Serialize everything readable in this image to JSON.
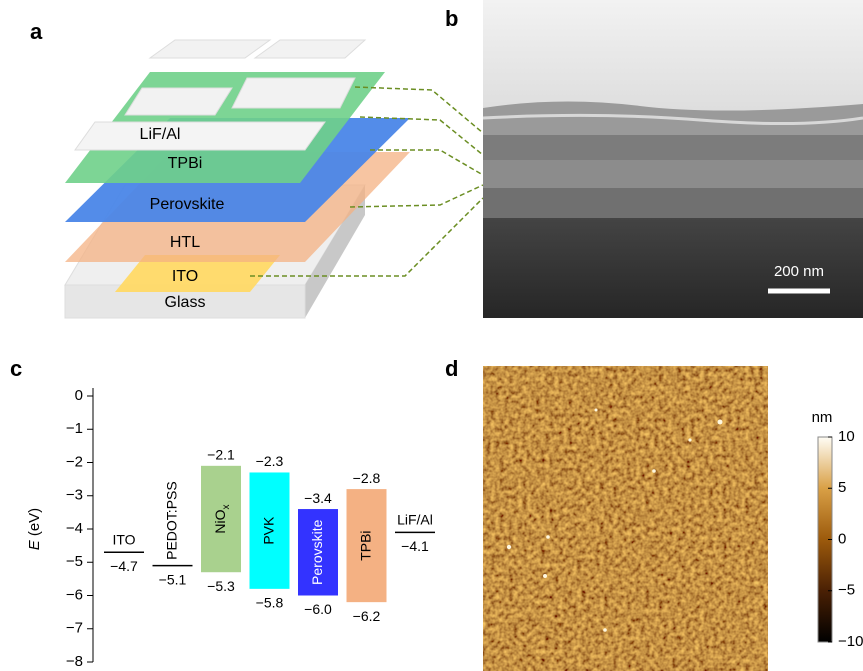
{
  "panels": {
    "a": "a",
    "b": "b",
    "c": "c",
    "d": "d"
  },
  "device_layers": [
    "LiF/Al",
    "TPBi",
    "Perovskite",
    "HTL",
    "ITO",
    "Glass"
  ],
  "sem": {
    "scale_bar": "200 nm"
  },
  "chart_data": {
    "type": "energy_levels",
    "ylabel_var": "E",
    "ylabel_unit": "(eV)",
    "ylim": [
      -8,
      0
    ],
    "yticks": [
      0,
      {
        "value": -1,
        "label": "−1"
      },
      {
        "value": -2,
        "label": "−2"
      },
      {
        "value": -3,
        "label": "−3"
      },
      {
        "value": -4,
        "label": "−4"
      },
      {
        "value": -5,
        "label": "−5"
      },
      {
        "value": -6,
        "label": "−6"
      },
      {
        "value": -7,
        "label": "−7"
      },
      {
        "value": -8,
        "label": "−8"
      }
    ],
    "levels": [
      {
        "label": "ITO",
        "values": [
          -4.7
        ],
        "value_labels": [
          "−4.7"
        ]
      },
      {
        "label": "PEDOT:PSS",
        "values": [
          -5.1
        ],
        "value_labels": [
          "−5.1"
        ],
        "rotated_label": true
      },
      {
        "label": "NiO",
        "label_sub": "x",
        "values": [
          -2.1,
          -5.3
        ],
        "value_labels": [
          "−2.1",
          "−5.3"
        ],
        "color": "#a9d18e"
      },
      {
        "label": "PVK",
        "values": [
          -2.3,
          -5.8
        ],
        "value_labels": [
          "−2.3",
          "−5.8"
        ],
        "color": "#00ffff"
      },
      {
        "label": "Perovskite",
        "values": [
          -3.4,
          -6.0
        ],
        "value_labels": [
          "−3.4",
          "−6.0"
        ],
        "color": "#3333ff",
        "label_color": "#ffffff"
      },
      {
        "label": "TPBi",
        "values": [
          -2.8,
          -6.2
        ],
        "value_labels": [
          "−2.8",
          "−6.2"
        ],
        "color": "#f4b183"
      },
      {
        "label": "LiF/Al",
        "values": [
          -4.1
        ],
        "value_labels": [
          "−4.1"
        ]
      }
    ]
  },
  "afm": {
    "colorbar": {
      "label": "nm",
      "lim": [
        -10,
        10
      ],
      "ticks": [
        10,
        5,
        0,
        {
          "value": -5,
          "label": "−5"
        },
        {
          "value": -10,
          "label": "−10"
        }
      ]
    }
  }
}
